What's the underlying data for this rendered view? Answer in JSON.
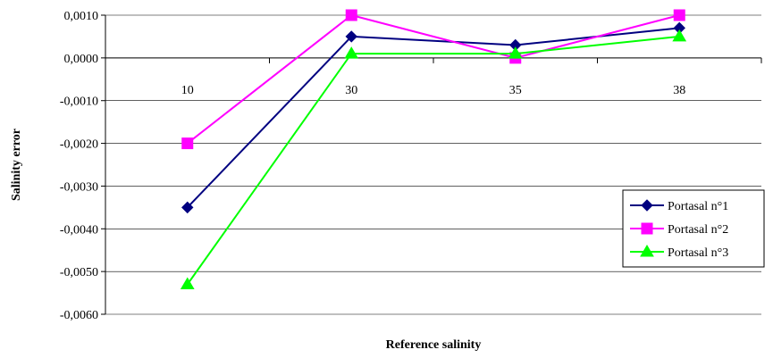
{
  "chart_data": {
    "type": "line",
    "title": "",
    "xlabel": "Reference salinity",
    "ylabel": "Salinity error",
    "categories": [
      "10",
      "30",
      "35",
      "38"
    ],
    "ylim": [
      -0.006,
      0.001
    ],
    "ytick_step": 0.001,
    "ytick_labels": [
      "0,0010",
      "0,0000",
      "-0,0010",
      "-0,0020",
      "-0,0030",
      "-0,0040",
      "-0,0050",
      "-0,0060"
    ],
    "grid": true,
    "legend_position": "right",
    "series": [
      {
        "name": "Portasal n°1",
        "values": [
          -0.0035,
          0.0005,
          0.0003,
          0.0007
        ],
        "color": "#000080",
        "marker": "diamond"
      },
      {
        "name": "Portasal n°2",
        "values": [
          -0.002,
          0.001,
          0.0,
          0.001
        ],
        "color": "#ff00ff",
        "marker": "square"
      },
      {
        "name": "Portasal n°3",
        "values": [
          -0.0053,
          0.0001,
          0.0001,
          0.0005
        ],
        "color": "#00ff00",
        "marker": "triangle"
      }
    ]
  }
}
